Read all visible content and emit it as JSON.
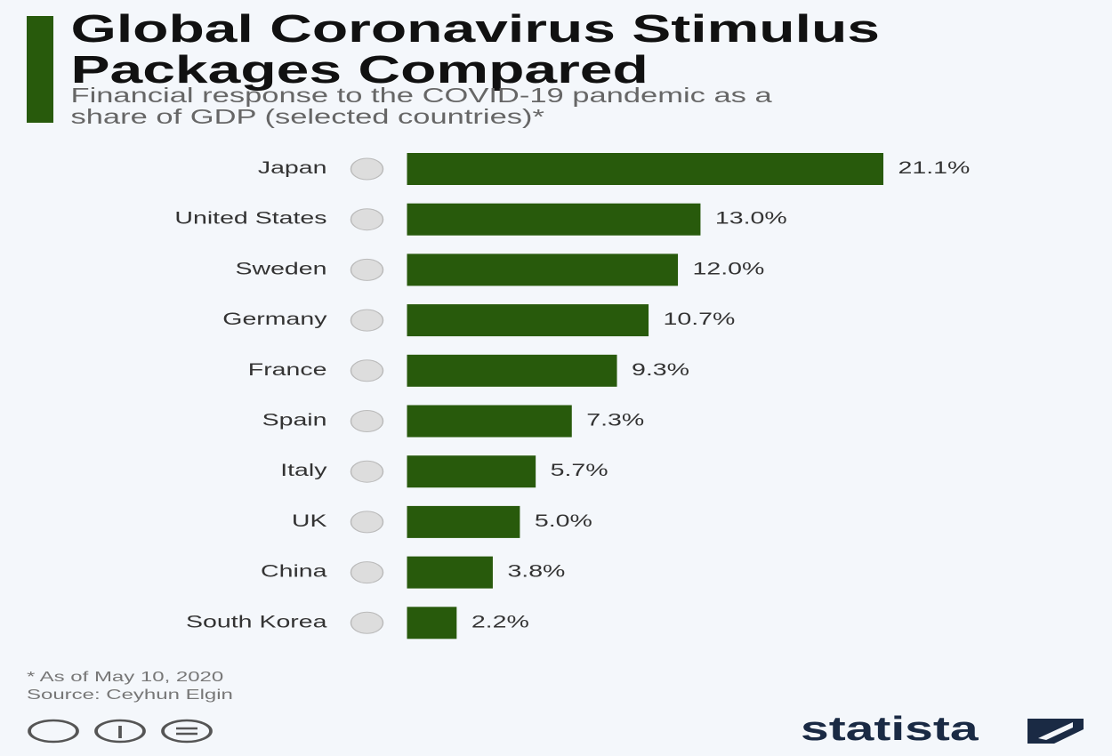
{
  "chart_data": {
    "type": "bar",
    "title": "Global Coronavirus Stimulus Packages Compared",
    "subtitle": "Financial response to the COVID-19 pandemic as a share of GDP (selected countries)*",
    "categories": [
      "Japan",
      "United States",
      "Sweden",
      "Germany",
      "France",
      "Spain",
      "Italy",
      "UK",
      "China",
      "South Korea"
    ],
    "values": [
      21.1,
      13.0,
      12.0,
      10.7,
      9.3,
      7.3,
      5.7,
      5.0,
      3.8,
      2.2
    ],
    "value_labels": [
      "21.1%",
      "13.0%",
      "12.0%",
      "10.7%",
      "9.3%",
      "7.3%",
      "5.7%",
      "5.0%",
      "3.8%",
      "2.2%"
    ],
    "color": "#285a0c",
    "note": "* As of May 10, 2020",
    "source": "Source: Ceyhun Elgin",
    "brand": "statista"
  }
}
